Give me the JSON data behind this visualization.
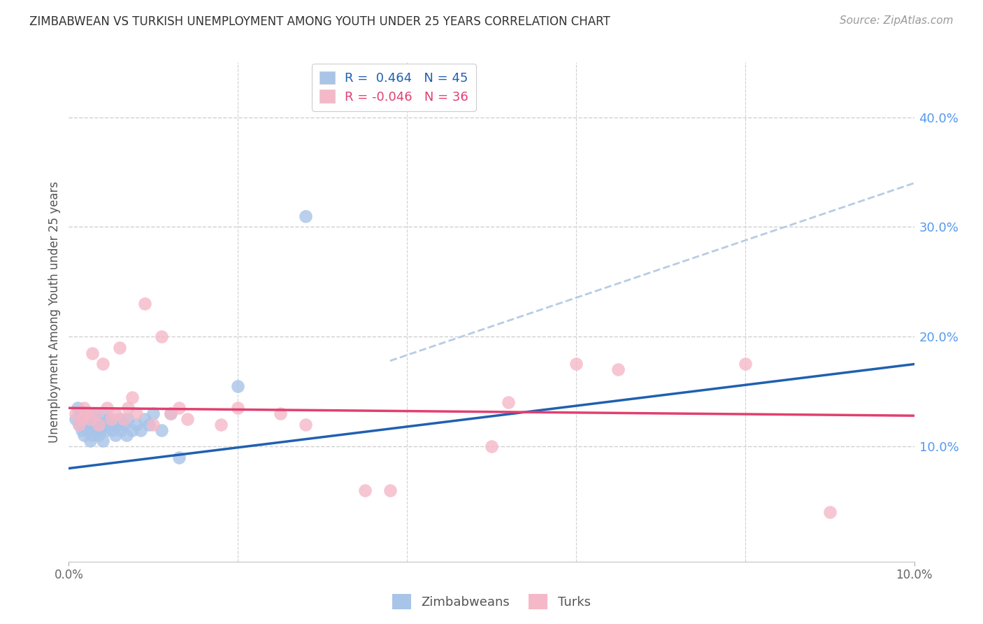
{
  "title": "ZIMBABWEAN VS TURKISH UNEMPLOYMENT AMONG YOUTH UNDER 25 YEARS CORRELATION CHART",
  "source": "Source: ZipAtlas.com",
  "ylabel": "Unemployment Among Youth under 25 years",
  "xlim": [
    0.0,
    0.1
  ],
  "ylim": [
    -0.005,
    0.45
  ],
  "yticks": [
    0.1,
    0.2,
    0.3,
    0.4
  ],
  "ytick_labels": [
    "10.0%",
    "20.0%",
    "30.0%",
    "40.0%"
  ],
  "blue_R": 0.464,
  "blue_N": 45,
  "pink_R": -0.046,
  "pink_N": 36,
  "blue_color": "#a8c4e8",
  "pink_color": "#f5b8c8",
  "blue_line_color": "#2060b0",
  "pink_line_color": "#e04070",
  "dashed_line_color": "#b8cce4",
  "legend_label_blue": "Zimbabweans",
  "legend_label_pink": "Turks",
  "blue_line_x0": 0.0,
  "blue_line_y0": 0.08,
  "blue_line_x1": 0.1,
  "blue_line_y1": 0.175,
  "pink_line_x0": 0.0,
  "pink_line_y0": 0.135,
  "pink_line_x1": 0.1,
  "pink_line_y1": 0.128,
  "dash_line_x0": 0.038,
  "dash_line_y0": 0.178,
  "dash_line_x1": 0.1,
  "dash_line_y1": 0.34,
  "zim_x": [
    0.0008,
    0.001,
    0.0012,
    0.0014,
    0.0015,
    0.0016,
    0.0018,
    0.002,
    0.0022,
    0.0022,
    0.0025,
    0.0025,
    0.0028,
    0.003,
    0.003,
    0.0032,
    0.0033,
    0.0035,
    0.0035,
    0.0038,
    0.004,
    0.0042,
    0.0042,
    0.0045,
    0.0048,
    0.005,
    0.0052,
    0.0055,
    0.0058,
    0.006,
    0.0062,
    0.0065,
    0.0068,
    0.007,
    0.0075,
    0.008,
    0.0085,
    0.009,
    0.0095,
    0.01,
    0.011,
    0.012,
    0.013,
    0.02,
    0.028
  ],
  "zim_y": [
    0.125,
    0.135,
    0.12,
    0.13,
    0.115,
    0.125,
    0.11,
    0.12,
    0.115,
    0.125,
    0.105,
    0.115,
    0.11,
    0.12,
    0.13,
    0.115,
    0.125,
    0.11,
    0.12,
    0.115,
    0.105,
    0.12,
    0.13,
    0.115,
    0.125,
    0.12,
    0.115,
    0.11,
    0.12,
    0.125,
    0.115,
    0.12,
    0.11,
    0.125,
    0.115,
    0.12,
    0.115,
    0.125,
    0.12,
    0.13,
    0.115,
    0.13,
    0.09,
    0.155,
    0.31
  ],
  "turk_x": [
    0.0008,
    0.0012,
    0.0015,
    0.0018,
    0.002,
    0.0025,
    0.0028,
    0.0032,
    0.0035,
    0.004,
    0.0045,
    0.005,
    0.0055,
    0.006,
    0.0065,
    0.007,
    0.0075,
    0.008,
    0.009,
    0.01,
    0.011,
    0.012,
    0.013,
    0.014,
    0.018,
    0.02,
    0.025,
    0.028,
    0.035,
    0.038,
    0.05,
    0.052,
    0.06,
    0.065,
    0.08,
    0.09
  ],
  "turk_y": [
    0.13,
    0.12,
    0.125,
    0.135,
    0.13,
    0.125,
    0.185,
    0.13,
    0.12,
    0.175,
    0.135,
    0.125,
    0.13,
    0.19,
    0.125,
    0.135,
    0.145,
    0.13,
    0.23,
    0.12,
    0.2,
    0.13,
    0.135,
    0.125,
    0.12,
    0.135,
    0.13,
    0.12,
    0.06,
    0.06,
    0.1,
    0.14,
    0.175,
    0.17,
    0.175,
    0.04
  ],
  "background_color": "#ffffff",
  "grid_color": "#d0d0d0",
  "watermark_color": "#e8eef5"
}
